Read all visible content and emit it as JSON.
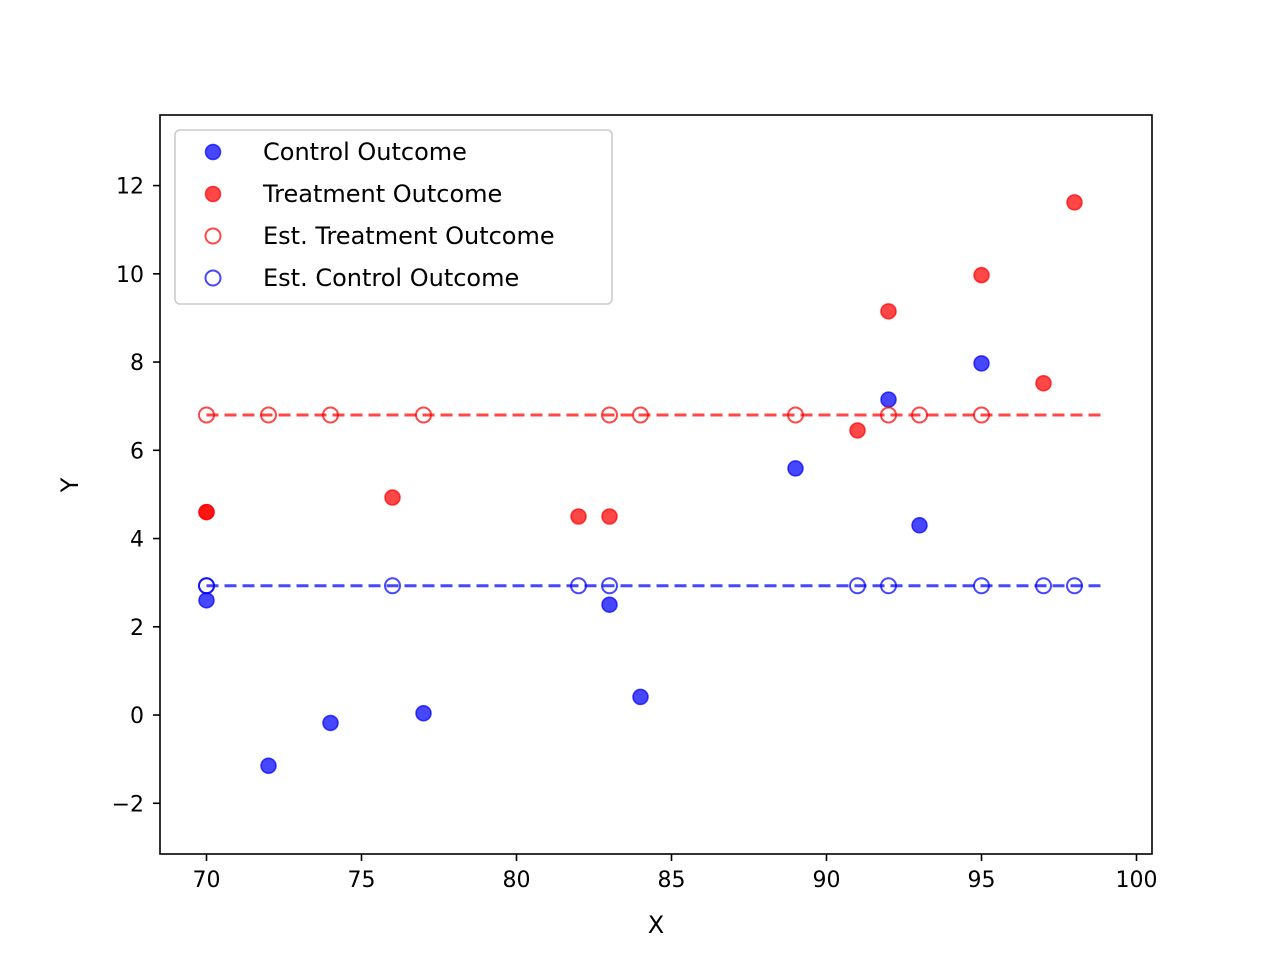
{
  "chart_data": {
    "type": "scatter",
    "title": "",
    "xlabel": "X",
    "ylabel": "Y",
    "xlim": [
      68.5,
      100.5
    ],
    "ylim": [
      -3.15,
      13.6
    ],
    "xticks": [
      70,
      75,
      80,
      85,
      90,
      95,
      100
    ],
    "yticks": [
      -2,
      0,
      2,
      4,
      6,
      8,
      10,
      12
    ],
    "grid": false,
    "legend": {
      "placement": "upper-left"
    },
    "series": [
      {
        "name": "Control Outcome",
        "marker": "filled-circle",
        "color": "#0000ff",
        "alpha": 0.72,
        "x": [
          70,
          72,
          74,
          77,
          83,
          84,
          89,
          92,
          93,
          95
        ],
        "y": [
          2.6,
          -1.15,
          -0.18,
          0.04,
          2.5,
          0.41,
          5.59,
          7.15,
          4.3,
          7.97
        ]
      },
      {
        "name": "Treatment Outcome",
        "marker": "filled-circle",
        "color": "#ff0000",
        "alpha": 0.72,
        "x": [
          70,
          70,
          76,
          82,
          83,
          91,
          92,
          95,
          97,
          98
        ],
        "y": [
          4.6,
          4.6,
          4.93,
          4.5,
          4.5,
          6.45,
          9.15,
          9.97,
          7.52,
          11.62
        ]
      },
      {
        "name": "Est. Treatment Outcome",
        "marker": "open-circle",
        "color": "#ff0000",
        "alpha": 0.72,
        "x": [
          70,
          72,
          74,
          77,
          83,
          84,
          89,
          92,
          93,
          95
        ],
        "y": [
          6.8,
          6.8,
          6.8,
          6.8,
          6.8,
          6.8,
          6.8,
          6.8,
          6.8,
          6.8
        ]
      },
      {
        "name": "Est. Control Outcome",
        "marker": "open-circle",
        "color": "#0000ff",
        "alpha": 0.72,
        "x": [
          70,
          70,
          76,
          82,
          83,
          91,
          92,
          95,
          97,
          98
        ],
        "y": [
          2.93,
          2.93,
          2.93,
          2.93,
          2.93,
          2.93,
          2.93,
          2.93,
          2.93,
          2.93
        ]
      }
    ],
    "reference_lines": [
      {
        "y": 6.8,
        "x_range": [
          70,
          99
        ],
        "style": "dashed",
        "color": "#ff0000",
        "alpha": 0.72
      },
      {
        "y": 2.93,
        "x_range": [
          70,
          99
        ],
        "style": "dashed",
        "color": "#0000ff",
        "alpha": 0.72
      }
    ]
  }
}
